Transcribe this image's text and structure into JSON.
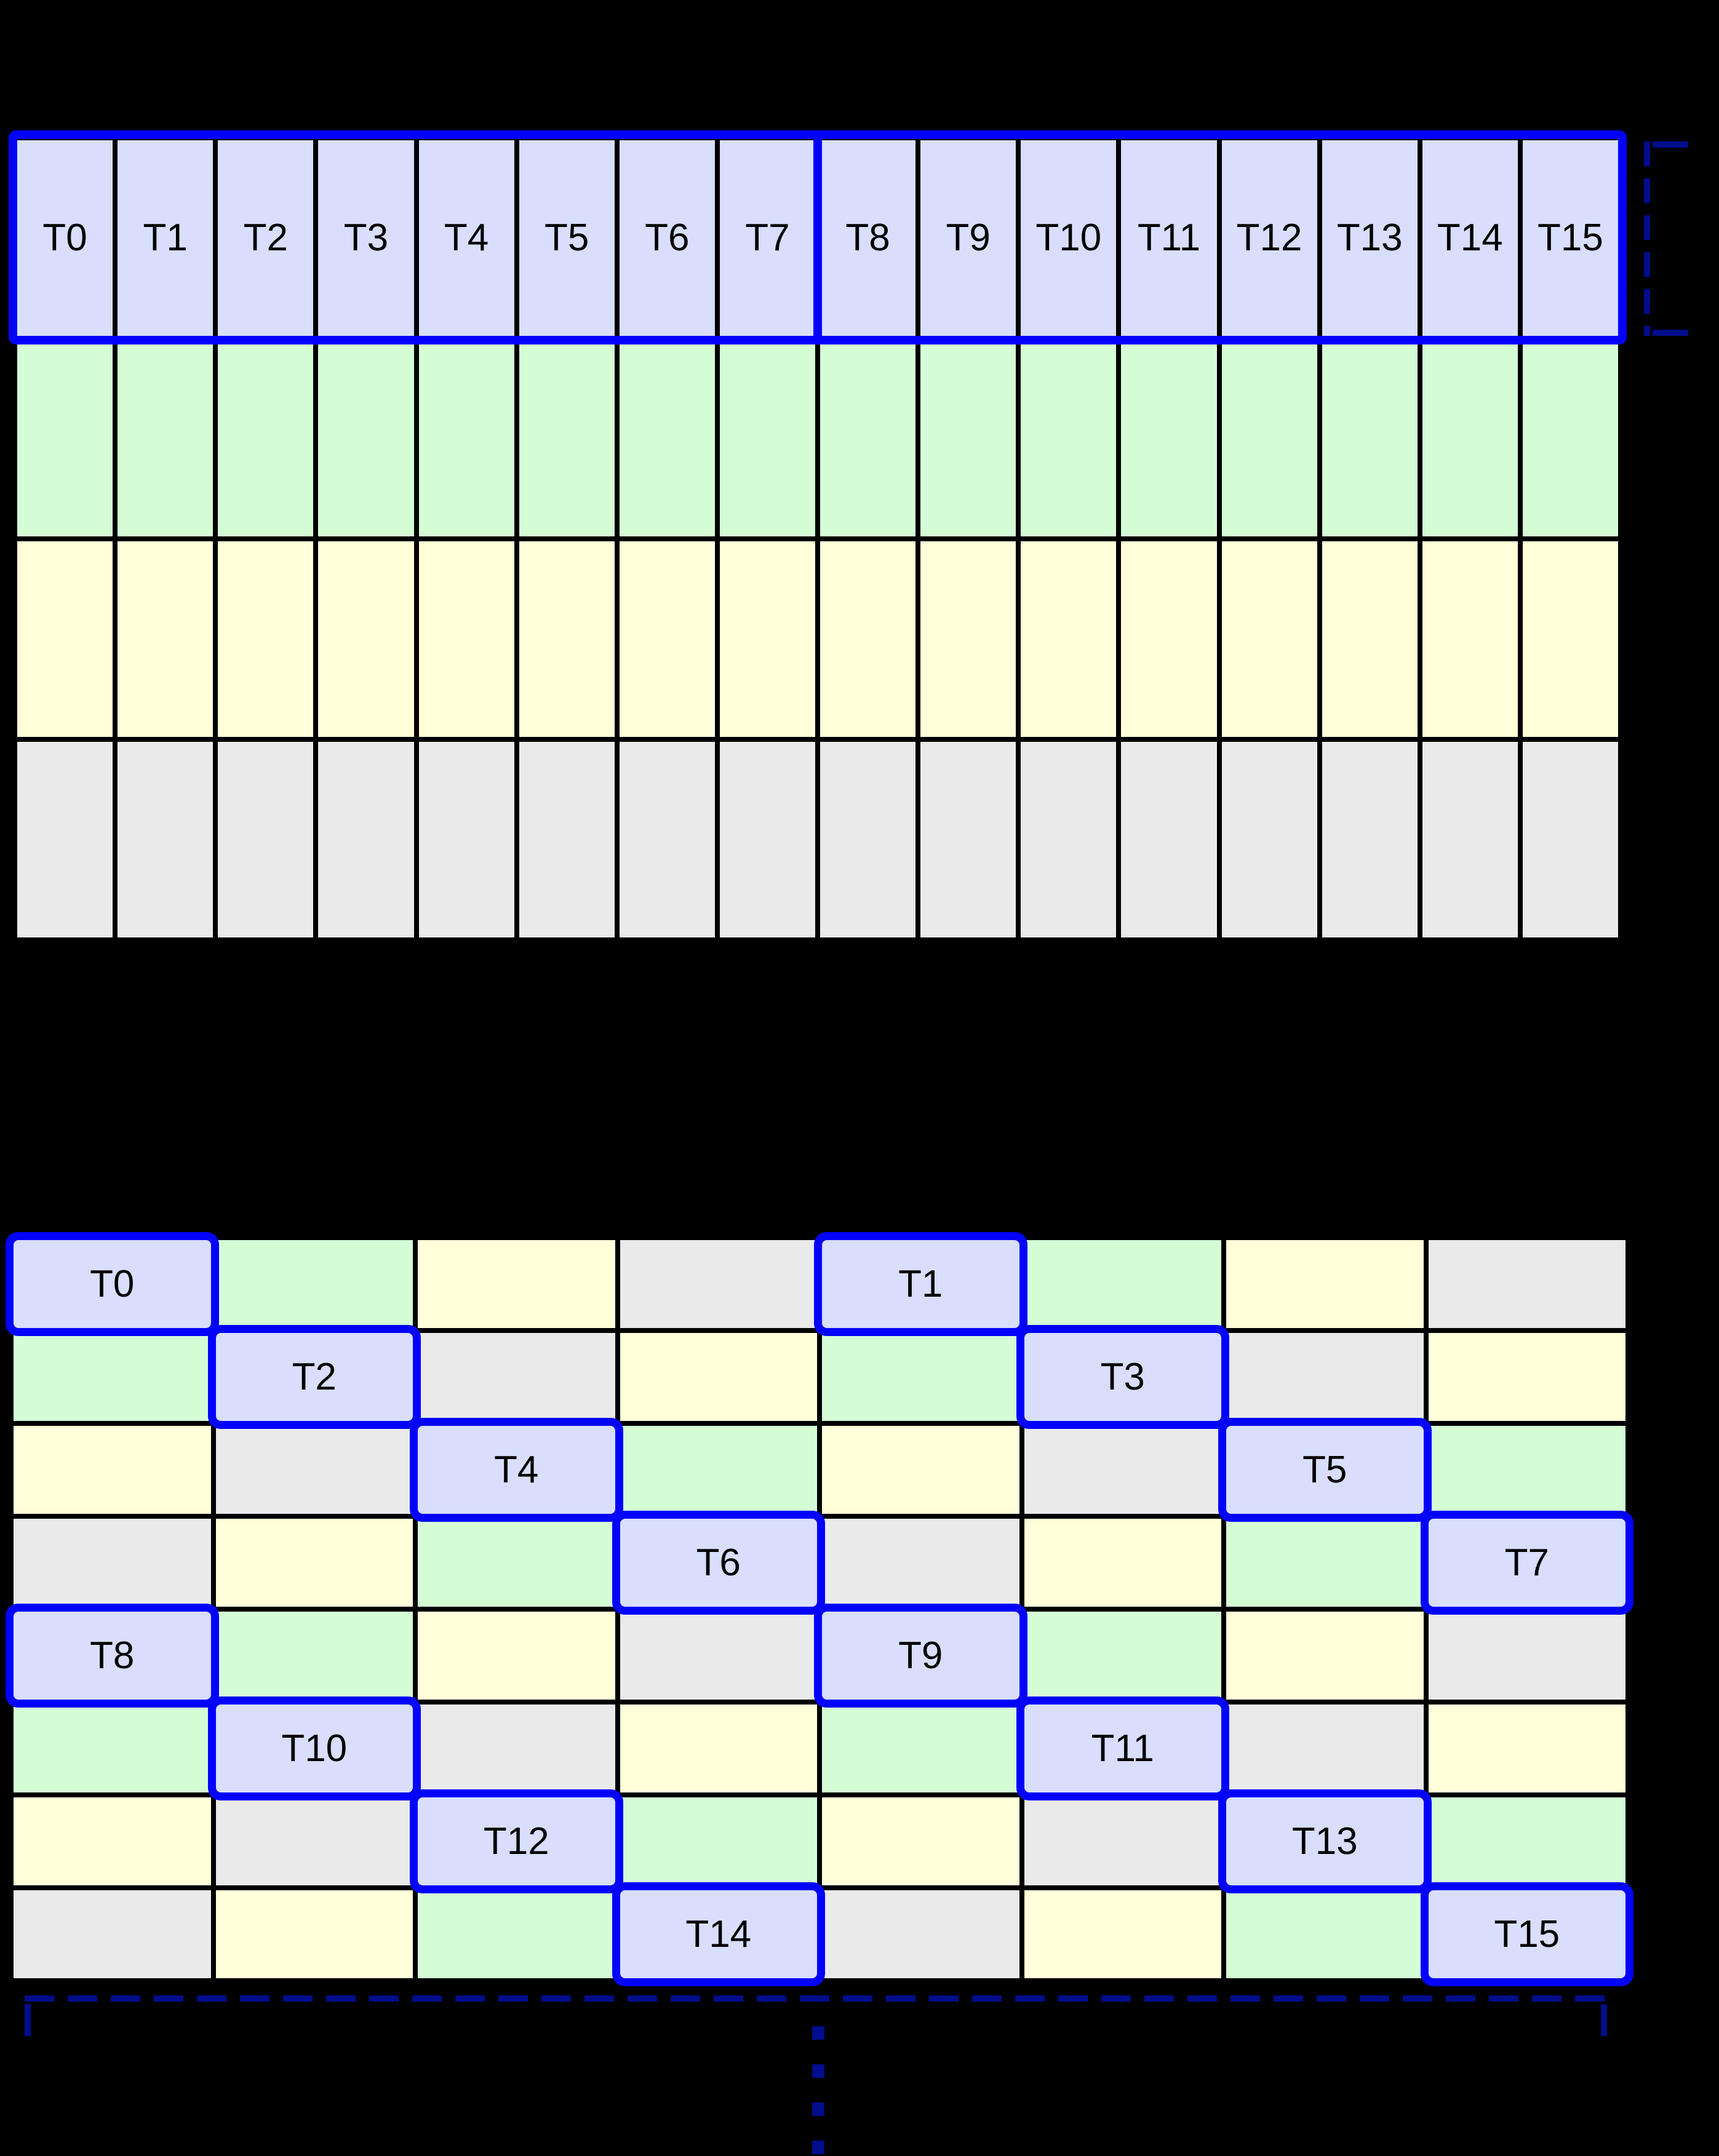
{
  "palette": {
    "background": "#000000",
    "grid_black": "#000000",
    "lavender": "#d8defc",
    "green": "#d4fdd6",
    "yellow": "#ffffd9",
    "gray": "#eaeaeb",
    "outline_blue": "#0202fb",
    "navy": "#000d8c",
    "label": "#000000"
  },
  "grid1": {
    "columns": 16,
    "thread_labels": [
      "T0",
      "T1",
      "T2",
      "T3",
      "T4",
      "T5",
      "T6",
      "T7",
      "T8",
      "T9",
      "T10",
      "T11",
      "T12",
      "T13",
      "T14",
      "T15"
    ],
    "rows": [
      {
        "color": "blue"
      },
      {
        "color": "green"
      },
      {
        "color": "yellow"
      },
      {
        "color": "gray"
      }
    ]
  },
  "grid2": {
    "columns": 8,
    "rows": [
      [
        {
          "c": "blue",
          "t": "T0"
        },
        {
          "c": "green"
        },
        {
          "c": "yellow"
        },
        {
          "c": "gray"
        },
        {
          "c": "blue",
          "t": "T1"
        },
        {
          "c": "green"
        },
        {
          "c": "yellow"
        },
        {
          "c": "gray"
        }
      ],
      [
        {
          "c": "green"
        },
        {
          "c": "blue",
          "t": "T2"
        },
        {
          "c": "gray"
        },
        {
          "c": "yellow"
        },
        {
          "c": "green"
        },
        {
          "c": "blue",
          "t": "T3"
        },
        {
          "c": "gray"
        },
        {
          "c": "yellow"
        }
      ],
      [
        {
          "c": "yellow"
        },
        {
          "c": "gray"
        },
        {
          "c": "blue",
          "t": "T4"
        },
        {
          "c": "green"
        },
        {
          "c": "yellow"
        },
        {
          "c": "gray"
        },
        {
          "c": "blue",
          "t": "T5"
        },
        {
          "c": "green"
        }
      ],
      [
        {
          "c": "gray"
        },
        {
          "c": "yellow"
        },
        {
          "c": "green"
        },
        {
          "c": "blue",
          "t": "T6"
        },
        {
          "c": "gray"
        },
        {
          "c": "yellow"
        },
        {
          "c": "green"
        },
        {
          "c": "blue",
          "t": "T7"
        }
      ],
      [
        {
          "c": "blue",
          "t": "T8"
        },
        {
          "c": "green"
        },
        {
          "c": "yellow"
        },
        {
          "c": "gray"
        },
        {
          "c": "blue",
          "t": "T9"
        },
        {
          "c": "green"
        },
        {
          "c": "yellow"
        },
        {
          "c": "gray"
        }
      ],
      [
        {
          "c": "green"
        },
        {
          "c": "blue",
          "t": "T10"
        },
        {
          "c": "gray"
        },
        {
          "c": "yellow"
        },
        {
          "c": "green"
        },
        {
          "c": "blue",
          "t": "T11"
        },
        {
          "c": "gray"
        },
        {
          "c": "yellow"
        }
      ],
      [
        {
          "c": "yellow"
        },
        {
          "c": "gray"
        },
        {
          "c": "blue",
          "t": "T12"
        },
        {
          "c": "green"
        },
        {
          "c": "yellow"
        },
        {
          "c": "gray"
        },
        {
          "c": "blue",
          "t": "T13"
        },
        {
          "c": "green"
        }
      ],
      [
        {
          "c": "gray"
        },
        {
          "c": "yellow"
        },
        {
          "c": "green"
        },
        {
          "c": "blue",
          "t": "T14"
        },
        {
          "c": "gray"
        },
        {
          "c": "yellow"
        },
        {
          "c": "green"
        },
        {
          "c": "blue",
          "t": "T15"
        }
      ]
    ]
  }
}
